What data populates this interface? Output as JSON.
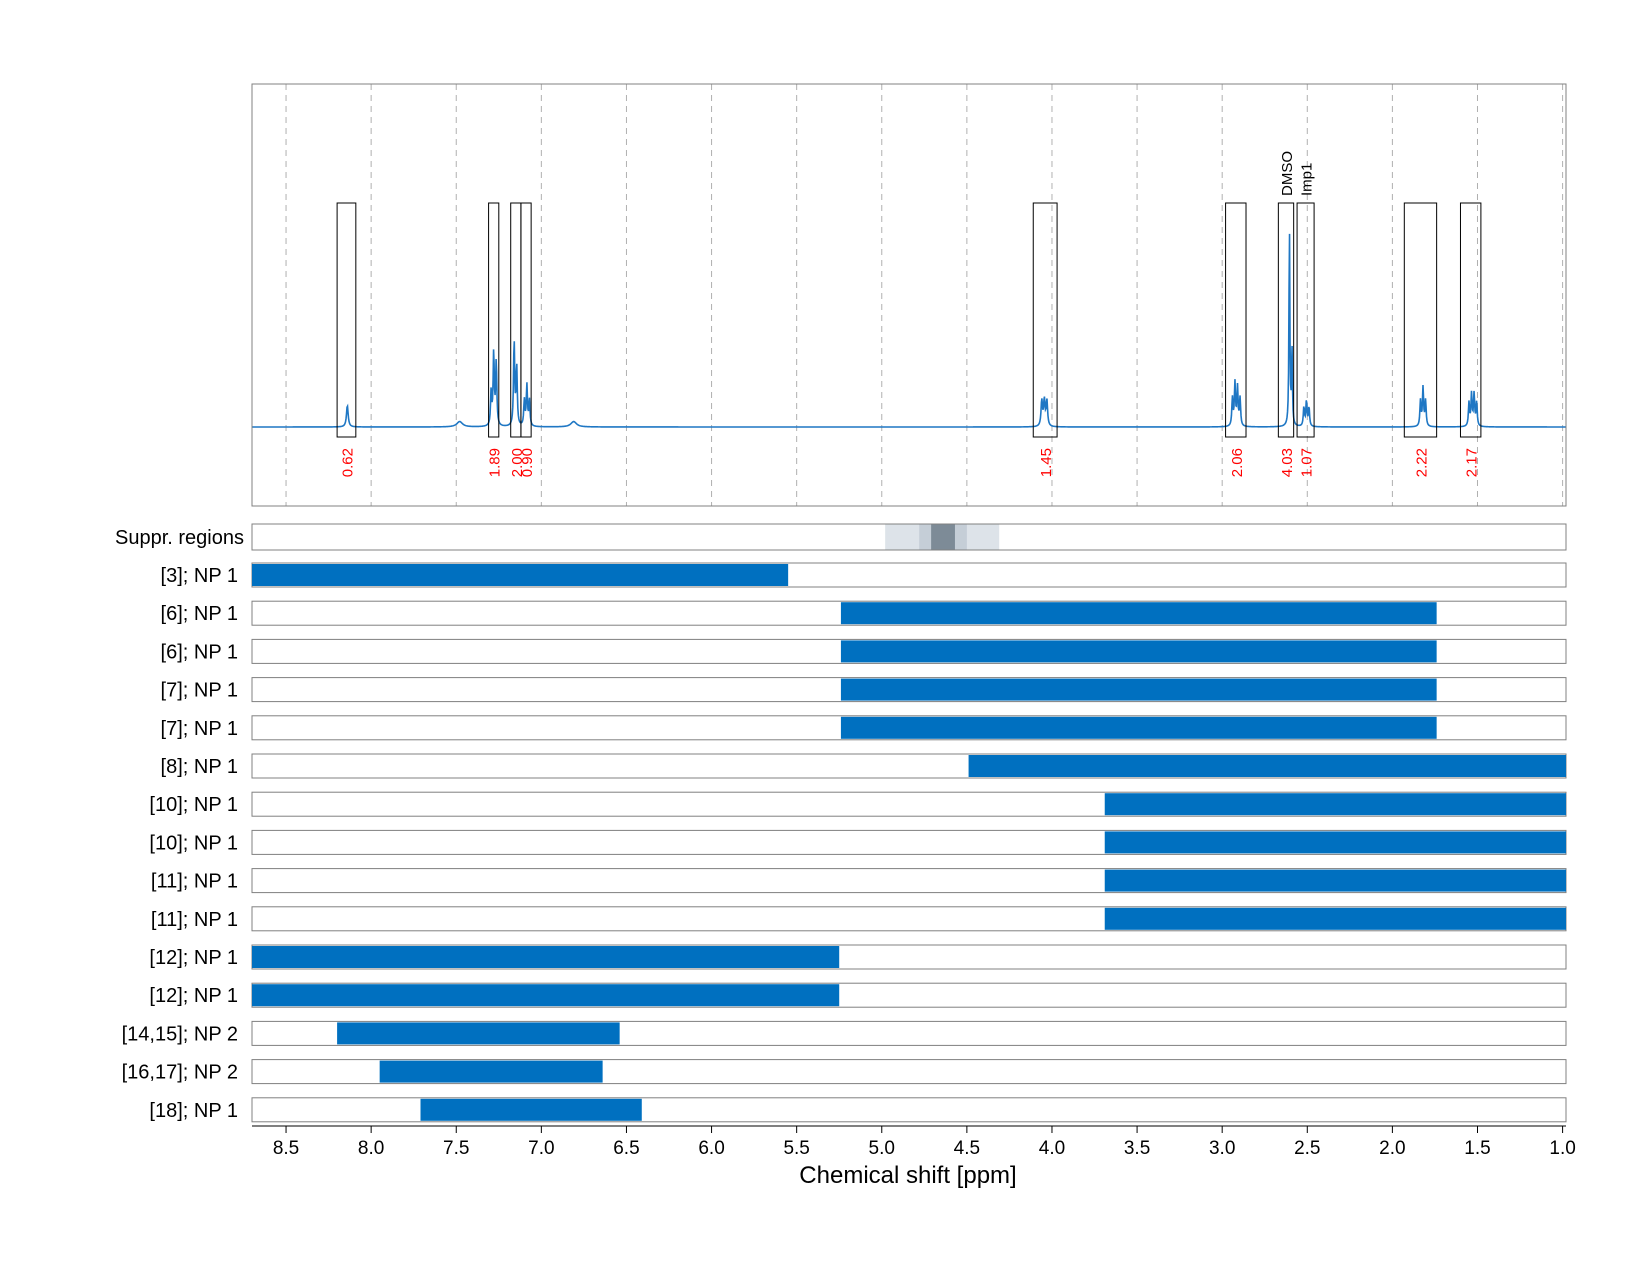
{
  "chart_data": {
    "type": "line",
    "xlabel": "Chemical shift [ppm]",
    "xlim": [
      8.7,
      0.98
    ],
    "x_ticks": [
      8.5,
      8.0,
      7.5,
      7.0,
      6.5,
      6.0,
      5.5,
      5.0,
      4.5,
      4.0,
      3.5,
      3.0,
      2.5,
      2.0,
      1.5,
      1.0
    ],
    "x_tick_labels": [
      "8.5",
      "8.0",
      "7.5",
      "7.0",
      "6.5",
      "6.0",
      "5.5",
      "5.0",
      "4.5",
      "4.0",
      "3.5",
      "3.0",
      "2.5",
      "2.0",
      "1.5",
      "1.0"
    ],
    "grid": "vertical dashed",
    "spectrum": {
      "peaks": [
        {
          "ppm": 8.14,
          "height": 0.1,
          "width": 0.006
        },
        {
          "ppm": 7.295,
          "height": 0.16,
          "width": 0.004
        },
        {
          "ppm": 7.28,
          "height": 0.34,
          "width": 0.004
        },
        {
          "ppm": 7.265,
          "height": 0.3,
          "width": 0.004
        },
        {
          "ppm": 7.16,
          "height": 0.4,
          "width": 0.004
        },
        {
          "ppm": 7.145,
          "height": 0.28,
          "width": 0.004
        },
        {
          "ppm": 7.1,
          "height": 0.12,
          "width": 0.004
        },
        {
          "ppm": 7.085,
          "height": 0.19,
          "width": 0.004
        },
        {
          "ppm": 7.07,
          "height": 0.12,
          "width": 0.004
        },
        {
          "ppm": 7.48,
          "height": 0.025,
          "width": 0.02
        },
        {
          "ppm": 6.81,
          "height": 0.025,
          "width": 0.02
        },
        {
          "ppm": 4.06,
          "height": 0.12,
          "width": 0.005
        },
        {
          "ppm": 4.045,
          "height": 0.12,
          "width": 0.005
        },
        {
          "ppm": 4.03,
          "height": 0.12,
          "width": 0.005
        },
        {
          "ppm": 2.94,
          "height": 0.13,
          "width": 0.004
        },
        {
          "ppm": 2.925,
          "height": 0.2,
          "width": 0.004
        },
        {
          "ppm": 2.91,
          "height": 0.18,
          "width": 0.004
        },
        {
          "ppm": 2.895,
          "height": 0.13,
          "width": 0.004
        },
        {
          "ppm": 2.605,
          "height": 0.95,
          "width": 0.003
        },
        {
          "ppm": 2.59,
          "height": 0.36,
          "width": 0.003
        },
        {
          "ppm": 2.52,
          "height": 0.09,
          "width": 0.004
        },
        {
          "ppm": 2.505,
          "height": 0.12,
          "width": 0.004
        },
        {
          "ppm": 2.49,
          "height": 0.09,
          "width": 0.004
        },
        {
          "ppm": 1.835,
          "height": 0.12,
          "width": 0.004
        },
        {
          "ppm": 1.82,
          "height": 0.18,
          "width": 0.004
        },
        {
          "ppm": 1.805,
          "height": 0.12,
          "width": 0.004
        },
        {
          "ppm": 1.55,
          "height": 0.11,
          "width": 0.004
        },
        {
          "ppm": 1.535,
          "height": 0.15,
          "width": 0.004
        },
        {
          "ppm": 1.52,
          "height": 0.15,
          "width": 0.004
        },
        {
          "ppm": 1.505,
          "height": 0.11,
          "width": 0.004
        }
      ]
    },
    "integration_regions": [
      {
        "start": 8.2,
        "end": 8.09,
        "integral": "0.62",
        "label": ""
      },
      {
        "start": 7.31,
        "end": 7.25,
        "integral": "1.89",
        "label": ""
      },
      {
        "start": 7.18,
        "end": 7.12,
        "integral": "2.00",
        "label": ""
      },
      {
        "start": 7.12,
        "end": 7.06,
        "integral": "0.90",
        "label": ""
      },
      {
        "start": 4.11,
        "end": 3.97,
        "integral": "1.45",
        "label": ""
      },
      {
        "start": 2.98,
        "end": 2.86,
        "integral": "2.06",
        "label": ""
      },
      {
        "start": 2.67,
        "end": 2.58,
        "integral": "4.03",
        "label": "DMSO"
      },
      {
        "start": 2.56,
        "end": 2.46,
        "integral": "1.07",
        "label": "Imp1"
      },
      {
        "start": 1.93,
        "end": 1.74,
        "integral": "2.22",
        "label": ""
      },
      {
        "start": 1.6,
        "end": 1.48,
        "integral": "2.17",
        "label": ""
      }
    ],
    "suppression": {
      "label": "Suppr. regions",
      "bands": [
        {
          "start": 4.98,
          "end": 4.31,
          "color": "#dde3e9"
        },
        {
          "start": 4.78,
          "end": 4.5,
          "color": "#c5ced7"
        },
        {
          "start": 4.71,
          "end": 4.57,
          "color": "#7d8b97"
        }
      ]
    },
    "ranges": [
      {
        "label": "[3]; NP 1",
        "start": 8.7,
        "end": 5.55
      },
      {
        "label": "[6]; NP 1",
        "start": 5.24,
        "end": 1.74
      },
      {
        "label": "[6]; NP 1",
        "start": 5.24,
        "end": 1.74
      },
      {
        "label": "[7]; NP 1",
        "start": 5.24,
        "end": 1.74
      },
      {
        "label": "[7]; NP 1",
        "start": 5.24,
        "end": 1.74
      },
      {
        "label": "[8]; NP 1",
        "start": 4.49,
        "end": 0.98
      },
      {
        "label": "[10]; NP 1",
        "start": 3.69,
        "end": 0.98
      },
      {
        "label": "[10]; NP 1",
        "start": 3.69,
        "end": 0.98
      },
      {
        "label": "[11]; NP 1",
        "start": 3.69,
        "end": 0.98
      },
      {
        "label": "[11]; NP 1",
        "start": 3.69,
        "end": 0.98
      },
      {
        "label": "[12]; NP 1",
        "start": 8.7,
        "end": 5.25
      },
      {
        "label": "[12]; NP 1",
        "start": 8.7,
        "end": 5.25
      },
      {
        "label": "[14,15]; NP 2",
        "start": 8.2,
        "end": 6.54
      },
      {
        "label": "[16,17]; NP 2",
        "start": 7.95,
        "end": 6.64
      },
      {
        "label": "[18]; NP 1",
        "start": 7.71,
        "end": 6.41
      }
    ],
    "colors": {
      "spectrum": "#1f77c4",
      "range_bar": "#0070c0",
      "integral_text": "#ff0000",
      "grid": "#b0b0b0",
      "frame": "#808080"
    }
  }
}
